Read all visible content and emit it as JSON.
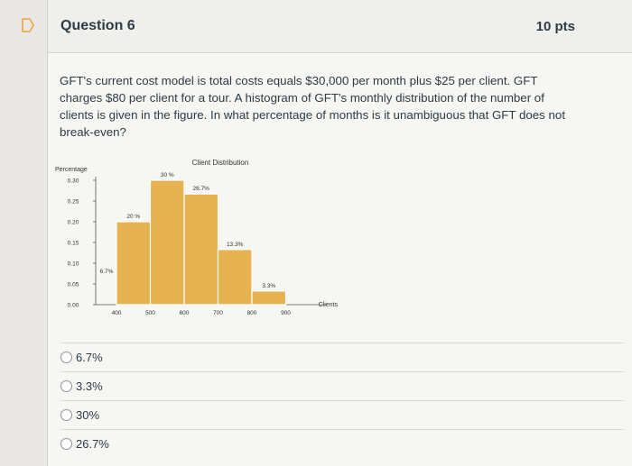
{
  "question": {
    "title": "Question 6",
    "points": "10 pts",
    "text": "GFT's current cost model is total costs equals $30,000 per month plus $25 per client. GFT charges $80 per client for a tour. A histogram of GFT's monthly distribution of the number of clients is given in the figure. In what percentage of months is it unambiguous that GFT does not break-even?"
  },
  "chart_data": {
    "type": "bar",
    "title": "Client Distribution",
    "ylabel": "Percentage",
    "xlabel": "Clients",
    "categories": [
      "400-500",
      "500-600",
      "600-700",
      "700-800",
      "800-900"
    ],
    "values": [
      0.2,
      0.3,
      0.267,
      0.133,
      0.033
    ],
    "bar_labels": [
      "20 %",
      "30 %",
      "26.7%",
      "13.3%",
      "3.3%"
    ],
    "y_ticks": [
      "0.00",
      "0.05",
      "0.10",
      "0.15",
      "0.20",
      "0.25",
      "0.30"
    ],
    "x_ticks": [
      "400",
      "500",
      "600",
      "700",
      "800",
      "900"
    ],
    "annotation": "6.7%",
    "ylim": [
      0,
      0.3
    ],
    "bar_color": "#e7b352",
    "grid": false
  },
  "answers": [
    {
      "label": "6.7%"
    },
    {
      "label": "3.3%"
    },
    {
      "label": "30%"
    },
    {
      "label": "26.7%"
    }
  ]
}
